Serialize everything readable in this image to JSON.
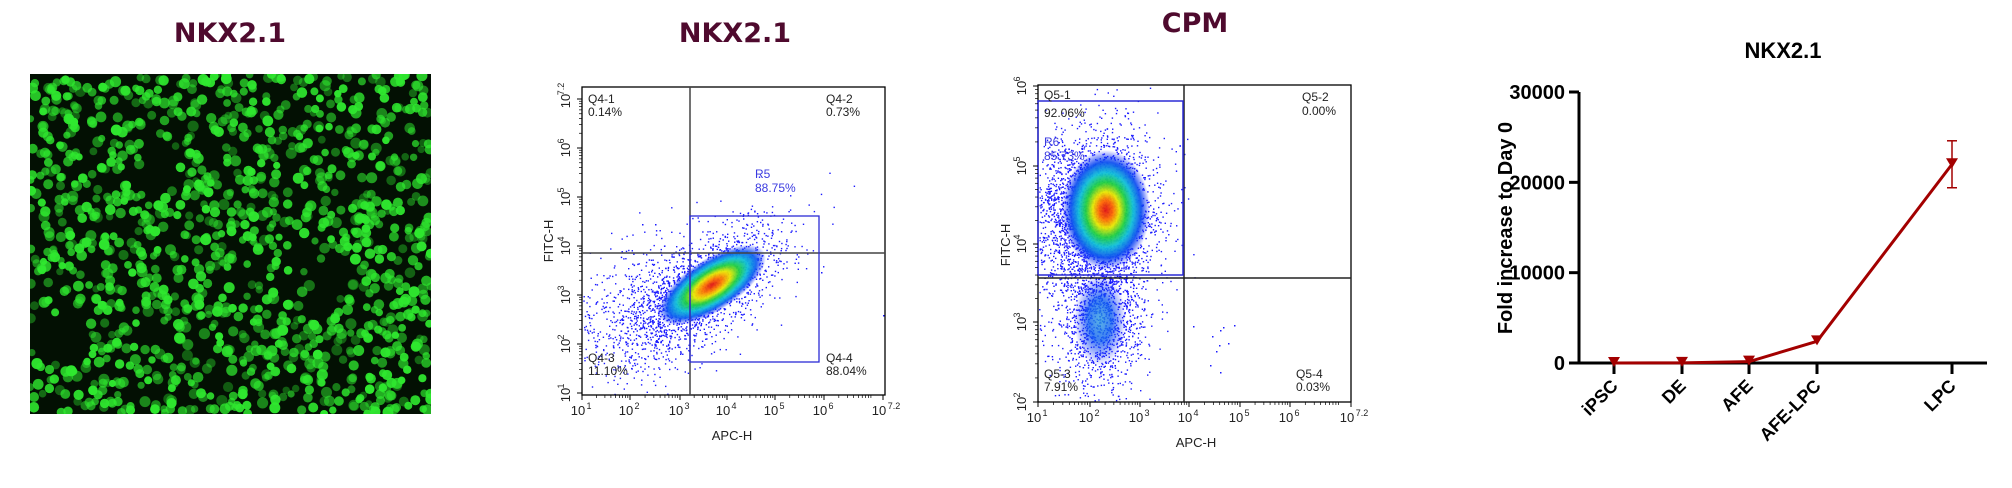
{
  "panels": {
    "microscopy": {
      "title": "NKX2.1",
      "color": "#2fe82f"
    },
    "flow1": {
      "title": "NKX2.1",
      "xlabel": "APC-H",
      "ylabel": "FITC-H",
      "x_ticks": [
        "10",
        "10",
        "10",
        "10",
        "10",
        "10",
        "10"
      ],
      "x_exp": [
        "1",
        "2",
        "3",
        "4",
        "5",
        "6",
        "7.2"
      ],
      "y_exp": [
        "7.2",
        "6",
        "5",
        "4",
        "3",
        "2",
        "1"
      ],
      "quadrants": [
        {
          "name": "Q4-1",
          "pct": "0.14%"
        },
        {
          "name": "Q4-2",
          "pct": "0.73%"
        },
        {
          "name": "Q4-3",
          "pct": "11.10%"
        },
        {
          "name": "Q4-4",
          "pct": "88.04%"
        }
      ],
      "gate": {
        "name": "R5",
        "pct": "88.75%"
      }
    },
    "flow2": {
      "title": "CPM",
      "xlabel": "APC-H",
      "ylabel": "FITC-H",
      "x_exp": [
        "1",
        "2",
        "3",
        "4",
        "5",
        "6",
        "7.2"
      ],
      "y_exp": [
        "6",
        "5",
        "4",
        "3",
        "2"
      ],
      "quadrants": [
        {
          "name": "Q5-1",
          "pct": "92.06%"
        },
        {
          "name": "Q5-2",
          "pct": "0.00%"
        },
        {
          "name": "Q5-3",
          "pct": "7.91%"
        },
        {
          "name": "Q5-4",
          "pct": "0.03%"
        }
      ],
      "gate": {
        "name": "R6",
        "pct": "85.73%"
      }
    }
  },
  "colors": {
    "title": "#4f0a2e",
    "gate": "#2b2bd6",
    "line": "#a30000",
    "axis": "#000000"
  },
  "chart_data": [
    {
      "type": "scatter",
      "title": "NKX2.1",
      "xlabel": "APC-H",
      "ylabel": "FITC-H",
      "xscale": "log",
      "yscale": "log",
      "xlim": [
        10,
        15848932
      ],
      "ylim": [
        10,
        15848932
      ],
      "quadrant_gates": {
        "x": 1500,
        "y": 7000
      },
      "quadrants": {
        "Q4-1": 0.14,
        "Q4-2": 0.73,
        "Q4-3": 11.1,
        "Q4-4": 88.04
      },
      "rect_gate": {
        "name": "R5",
        "percent": 88.75,
        "x": [
          1500,
          700000
        ],
        "y": [
          45,
          40000
        ]
      }
    },
    {
      "type": "scatter",
      "title": "CPM",
      "xlabel": "APC-H",
      "ylabel": "FITC-H",
      "xscale": "log",
      "yscale": "log",
      "xlim": [
        10,
        15848932
      ],
      "ylim": [
        100,
        1000000
      ],
      "quadrant_gates": {
        "x": 8000,
        "y": 3500
      },
      "quadrants": {
        "Q5-1": 92.06,
        "Q5-2": 0.0,
        "Q5-3": 7.91,
        "Q5-4": 0.03
      },
      "rect_gate": {
        "name": "R6",
        "percent": 85.73,
        "x": [
          10,
          7500
        ],
        "y": [
          4000,
          600000
        ]
      }
    },
    {
      "type": "line",
      "title": "NKX2.1",
      "xlabel": "",
      "ylabel": "Fold increase to Day 0",
      "categories": [
        "iPSC",
        "DE",
        "AFE",
        "AFE-LPC",
        "LPC"
      ],
      "x_positions": [
        0,
        1,
        2,
        3,
        5
      ],
      "values": [
        1,
        20,
        150,
        2400,
        22000
      ],
      "error": [
        0,
        0,
        0,
        0,
        2600
      ],
      "ylim": [
        0,
        30000
      ],
      "yticks": [
        0,
        10000,
        20000,
        30000
      ],
      "yticklabels": [
        "0",
        "10000",
        "20000",
        "30000"
      ],
      "marker": "triangle-down",
      "color": "#a30000"
    }
  ]
}
